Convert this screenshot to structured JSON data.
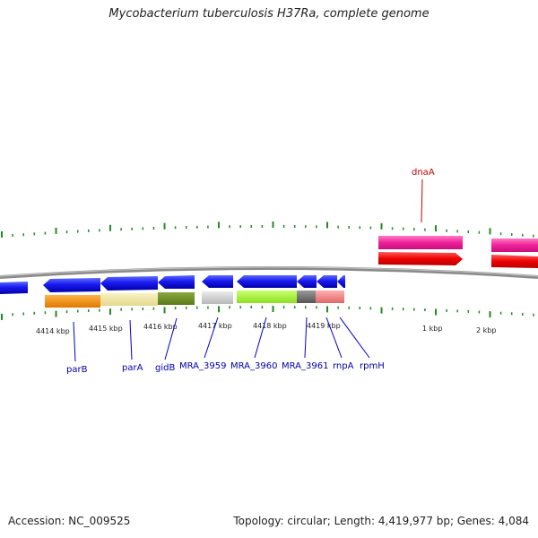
{
  "title": "Mycobacterium tuberculosis H37Ra, complete genome",
  "footer": {
    "accession": "Accession: NC_009525",
    "summary": "Topology: circular; Length: 4,419,977 bp; Genes: 4,084"
  },
  "colors": {
    "gene_label": "#0000aa",
    "highlight_label": "#cc0000",
    "tick": "#228b22",
    "backbone": "#7a7a7a"
  },
  "scale_labels": [
    "4414 kbp",
    "4415 kbp",
    "4416 kbp",
    "4417 kbp",
    "4418 kbp",
    "4419 kbp",
    "1 kbp",
    "2 kbp"
  ],
  "gene_labels": [
    "dnaA",
    "parB",
    "parA",
    "gidB",
    "MRA_3959",
    "MRA_3960",
    "MRA_3961",
    "rnpA",
    "rpmH"
  ]
}
